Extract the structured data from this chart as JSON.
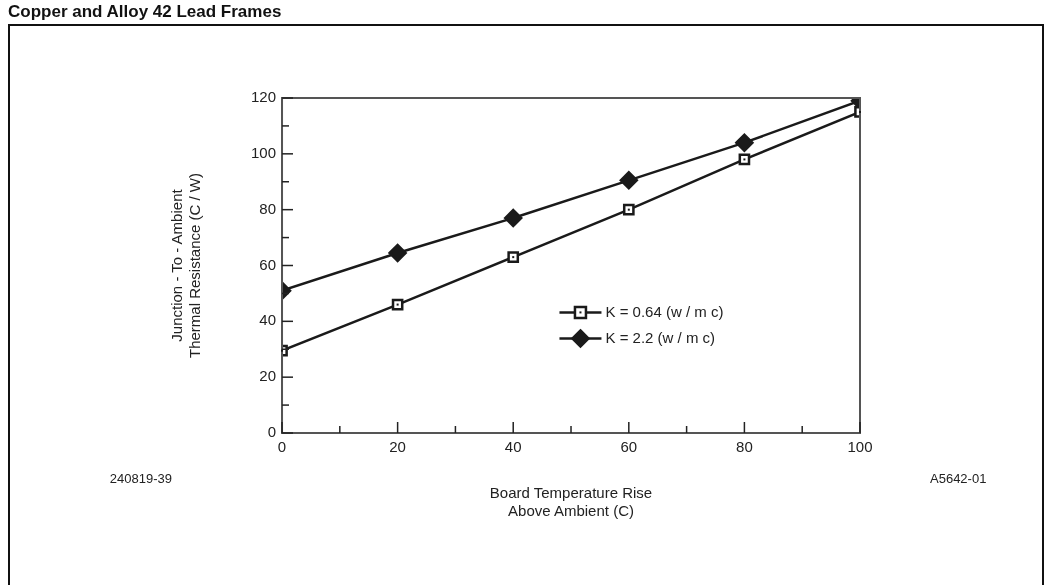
{
  "chart_data": {
    "type": "line",
    "title": "Copper and Alloy 42 Lead Frames",
    "xlabel": "Board Temperature Rise\nAbove Ambient (C)",
    "ylabel": "Junction - To - Ambient\nThermal Resistance (C / W)",
    "annotations": [
      "240819-39",
      "A5642-01"
    ],
    "x": [
      0,
      20,
      40,
      60,
      80,
      100
    ],
    "series": [
      {
        "name": "K = 0.64 (w / m c)",
        "color": "#1a1a1a",
        "marker": "square",
        "values": [
          29.5,
          46,
          63,
          80,
          98,
          115
        ]
      },
      {
        "name": "K = 2.2 (w / m c)",
        "color": "#1a1a1a",
        "marker": "diamond",
        "values": [
          51,
          64.5,
          77,
          90.5,
          104,
          119
        ]
      }
    ],
    "xlim": [
      0,
      100
    ],
    "ylim": [
      0,
      120
    ],
    "xticks": [
      0,
      {
        "value": 10,
        "label": null
      },
      20,
      {
        "value": 30,
        "label": null
      },
      40,
      {
        "value": 50,
        "label": null
      },
      60,
      {
        "value": 70,
        "label": null
      },
      80,
      {
        "value": 90,
        "label": null
      },
      100
    ],
    "yticks": [
      0,
      {
        "value": 10,
        "label": null
      },
      20,
      {
        "value": 30,
        "label": null
      },
      40,
      {
        "value": 50,
        "label": null
      },
      60,
      {
        "value": 70,
        "label": null
      },
      80,
      {
        "value": 90,
        "label": null
      },
      100,
      {
        "value": 110,
        "label": null
      },
      120
    ],
    "grid": false,
    "legend": "right",
    "line_style": "solid"
  }
}
